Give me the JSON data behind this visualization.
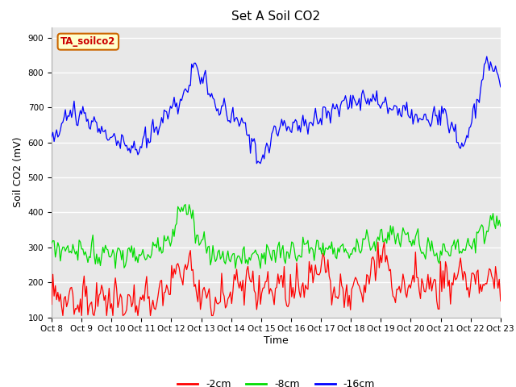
{
  "title": "Set A Soil CO2",
  "xlabel": "Time",
  "ylabel": "Soil CO2 (mV)",
  "ylim": [
    100,
    930
  ],
  "xlim": [
    0,
    360
  ],
  "xtick_labels": [
    "Oct 8",
    "Oct 9",
    "Oct 10",
    "Oct 11",
    "Oct 12",
    "Oct 13",
    "Oct 14",
    "Oct 15",
    "Oct 16",
    "Oct 17",
    "Oct 18",
    "Oct 19",
    "Oct 20",
    "Oct 21",
    "Oct 22",
    "Oct 23"
  ],
  "legend_labels": [
    "-2cm",
    "-8cm",
    "-16cm"
  ],
  "legend_colors": [
    "#ff0000",
    "#00dd00",
    "#0000ff"
  ],
  "line_colors": [
    "#ff0000",
    "#00dd00",
    "#0000ff"
  ],
  "annotation_text": "TA_soilco2",
  "annotation_bbox_facecolor": "#ffffcc",
  "annotation_bbox_edgecolor": "#cc6600",
  "annotation_text_color": "#cc0000",
  "background_color": "#e8e8e8",
  "fig_background": "#ffffff",
  "yticks": [
    100,
    200,
    300,
    400,
    500,
    600,
    700,
    800,
    900
  ],
  "title_fontsize": 11,
  "axis_label_fontsize": 9,
  "tick_fontsize": 7.5,
  "legend_fontsize": 9
}
